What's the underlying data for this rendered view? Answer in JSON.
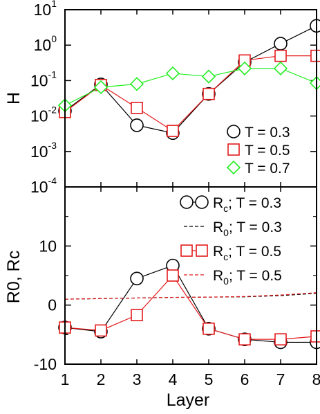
{
  "chart_data": [
    {
      "type": "line",
      "panel": "top",
      "ylabel": "H",
      "yscale": "log",
      "ylim": [
        0.0001,
        10
      ],
      "xlim": [
        1,
        8
      ],
      "yticks": [
        {
          "base": "10",
          "exp": "-4"
        },
        {
          "base": "10",
          "exp": "-3"
        },
        {
          "base": "10",
          "exp": "-2"
        },
        {
          "base": "10",
          "exp": "-1"
        },
        {
          "base": "10",
          "exp": "0"
        },
        {
          "base": "10",
          "exp": "1"
        }
      ],
      "x": [
        1,
        2,
        3,
        4,
        5,
        6,
        7,
        8
      ],
      "series": [
        {
          "name": "T = 0.3",
          "marker": "circle",
          "color": "#000000",
          "values": [
            0.014,
            0.078,
            0.0055,
            0.0033,
            0.042,
            0.33,
            1.1,
            3.5
          ]
        },
        {
          "name": "T = 0.5",
          "marker": "square",
          "color": "#e31a1c",
          "values": [
            0.013,
            0.075,
            0.017,
            0.0038,
            0.042,
            0.37,
            0.5,
            0.5
          ]
        },
        {
          "name": "T = 0.7",
          "marker": "diamond",
          "color": "#22ee22",
          "values": [
            0.02,
            0.065,
            0.08,
            0.16,
            0.13,
            0.22,
            0.22,
            0.085
          ]
        }
      ],
      "legend_position": "bottom-right"
    },
    {
      "type": "line",
      "panel": "bottom",
      "ylabel": "R0, Rc",
      "ylim": [
        -10,
        20
      ],
      "xlim": [
        1,
        8
      ],
      "yticks": [
        "-10",
        "0",
        "10"
      ],
      "xlabel": "Layer",
      "xticks": [
        "1",
        "2",
        "3",
        "4",
        "5",
        "6",
        "7",
        "8"
      ],
      "x": [
        1,
        2,
        3,
        4,
        5,
        6,
        7,
        8
      ],
      "series": [
        {
          "name_main": "R",
          "name_sub": "c",
          "name_rest": "; T = 0.3",
          "marker": "circle",
          "color": "#000000",
          "style": "solid",
          "values": [
            -3.8,
            -4.5,
            4.5,
            6.7,
            -4.0,
            -5.8,
            -6.3,
            -6.3
          ]
        },
        {
          "name_main": "R",
          "name_sub": "0",
          "name_rest": "; T = 0.3",
          "marker": "none",
          "color": "#000000",
          "style": "dashed",
          "values": [
            1.0,
            1.1,
            1.2,
            1.3,
            1.35,
            1.4,
            1.6,
            2.0
          ]
        },
        {
          "name_main": "R",
          "name_sub": "c",
          "name_rest": "; T = 0.5",
          "marker": "square",
          "color": "#e31a1c",
          "style": "solid",
          "values": [
            -3.8,
            -4.3,
            -1.7,
            5.0,
            -4.0,
            -5.8,
            -5.8,
            -5.3
          ]
        },
        {
          "name_main": "R",
          "name_sub": "0",
          "name_rest": "; T = 0.5",
          "marker": "none",
          "color": "#e31a1c",
          "style": "dashed",
          "values": [
            1.0,
            1.1,
            1.2,
            1.3,
            1.35,
            1.45,
            1.7,
            2.1
          ]
        }
      ],
      "legend_position": "top-right"
    }
  ]
}
